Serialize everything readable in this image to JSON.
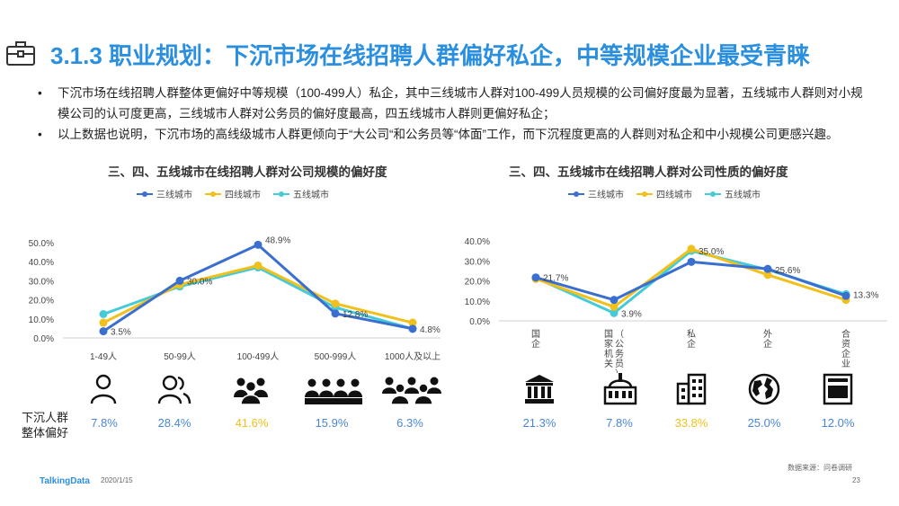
{
  "header": {
    "title": "3.1.3 职业规划：下沉市场在线招聘人群偏好私企，中等规模企业最受青睐",
    "bullets": [
      "下沉市场在线招聘人群整体更偏好中等规模（100-499人）私企，其中三线城市人群对100-499人员规模的公司偏好度最为显著，五线城市人群则对小规模公司的认可度更高，三线城市人群对公务员的偏好度最高，四五线城市人群则更偏好私企；",
      "以上数据也说明，下沉市场的高线级城市人群更倾向于“大公司“和公务员等“体面”工作，而下沉程度更高的人群则对私企和中小规模公司更感兴趣。"
    ]
  },
  "overall": {
    "label_line1": "下沉人群",
    "label_line2": "整体偏好",
    "size": [
      "7.8%",
      "28.4%",
      "41.6%",
      "15.9%",
      "6.3%"
    ],
    "type": [
      "21.3%",
      "7.8%",
      "33.8%",
      "25.0%",
      "12.0%"
    ]
  },
  "footer": {
    "logo": "TalkingData",
    "date": "2020/1/15",
    "source": "数据来源：问卷调研",
    "page": "23"
  },
  "chart_data": [
    {
      "type": "line",
      "title": "三、四、五线城市在线招聘人群对公司规模的偏好度",
      "categories": [
        "1-49人",
        "50-99人",
        "100-499人",
        "500-999人",
        "1000人及以上"
      ],
      "y_ticks": [
        "0.0%",
        "10.0%",
        "20.0%",
        "30.0%",
        "40.0%",
        "50.0%"
      ],
      "ylim": [
        0,
        50
      ],
      "legend_position": "top",
      "series": [
        {
          "name": "三线城市",
          "color": "#3a6fd0",
          "values": [
            3.5,
            30.0,
            48.9,
            12.8,
            4.8
          ]
        },
        {
          "name": "四线城市",
          "color": "#f2c01a",
          "values": [
            8.0,
            28.0,
            38.0,
            18.0,
            8.0
          ]
        },
        {
          "name": "五线城市",
          "color": "#45cbd8",
          "values": [
            12.5,
            27.0,
            37.0,
            16.0,
            4.8
          ]
        }
      ],
      "data_labels": [
        {
          "series": 0,
          "index": 0,
          "text": "3.5%"
        },
        {
          "series": 0,
          "index": 1,
          "text": "30.0%"
        },
        {
          "series": 0,
          "index": 2,
          "text": "48.9%"
        },
        {
          "series": 0,
          "index": 3,
          "text": "12.8%"
        },
        {
          "series": 2,
          "index": 4,
          "text": "4.8%"
        }
      ],
      "icons": [
        "person-icon",
        "two-people-icon",
        "group-icon",
        "crowd-icon",
        "large-crowd-icon"
      ]
    },
    {
      "type": "line",
      "title": "三、四、五线城市在线招聘人群对公司性质的偏好度",
      "categories": [
        "国企",
        "国家机关（公务员）",
        "私企",
        "外企",
        "合资企业"
      ],
      "category_columns": [
        [
          "国企"
        ],
        [
          "国家机关",
          "（公务员）"
        ],
        [
          "私企"
        ],
        [
          "外企"
        ],
        [
          "合资企业"
        ]
      ],
      "y_ticks": [
        "0.0%",
        "10.0%",
        "20.0%",
        "30.0%",
        "40.0%"
      ],
      "ylim": [
        0,
        40
      ],
      "legend_position": "top",
      "series": [
        {
          "name": "三线城市",
          "color": "#3a6fd0",
          "values": [
            21.7,
            10.5,
            29.5,
            26.0,
            12.5
          ]
        },
        {
          "name": "四线城市",
          "color": "#f2c01a",
          "values": [
            21.0,
            7.0,
            36.0,
            23.0,
            10.5
          ]
        },
        {
          "name": "五线城市",
          "color": "#45cbd8",
          "values": [
            21.5,
            3.9,
            35.0,
            25.6,
            13.3
          ]
        }
      ],
      "data_labels": [
        {
          "series": 0,
          "index": 0,
          "text": "21.7%"
        },
        {
          "series": 2,
          "index": 1,
          "text": "3.9%"
        },
        {
          "series": 2,
          "index": 2,
          "text": "35.0%"
        },
        {
          "series": 2,
          "index": 3,
          "text": "25.6%"
        },
        {
          "series": 2,
          "index": 4,
          "text": "13.3%"
        }
      ],
      "icons": [
        "bank-icon",
        "government-building-icon",
        "office-building-icon",
        "globe-icon",
        "joint-venture-icon"
      ]
    }
  ]
}
